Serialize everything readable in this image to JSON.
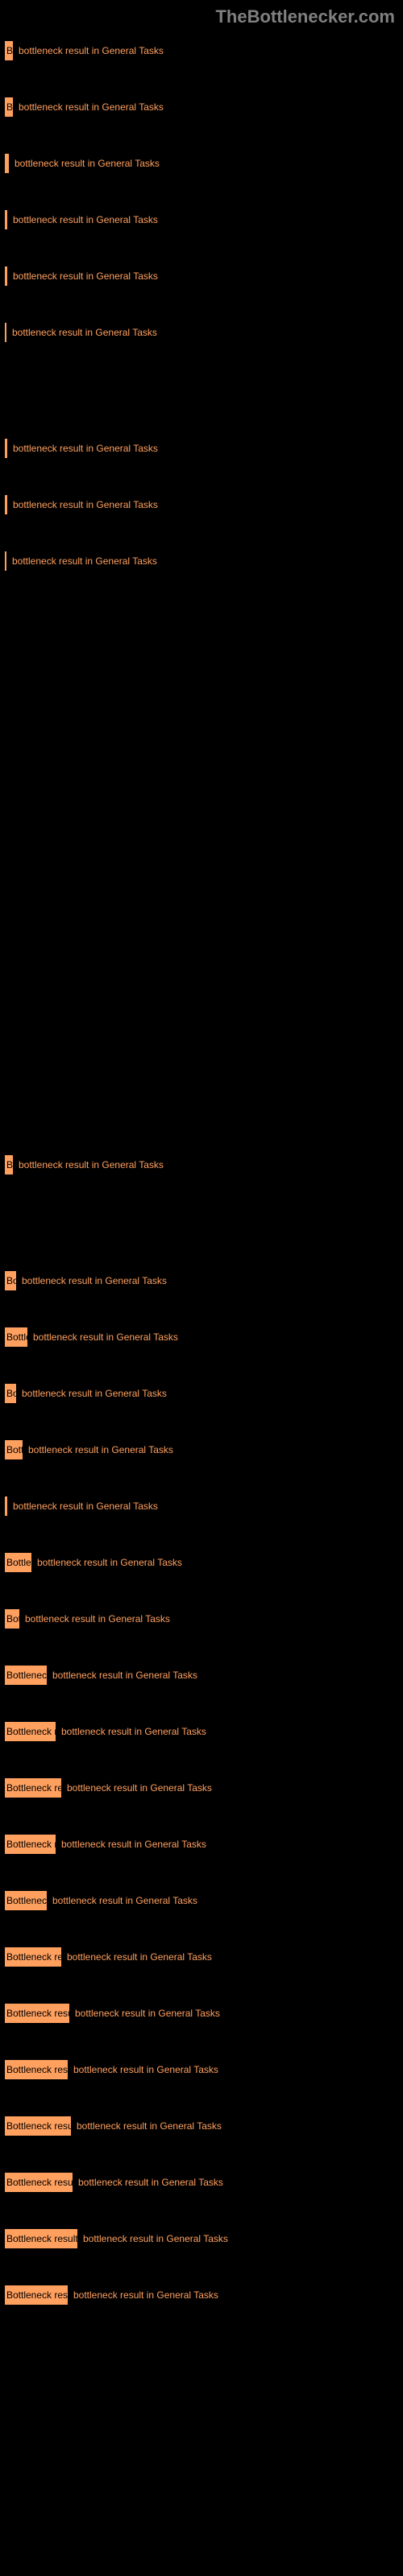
{
  "watermark": "TheBottlenecker.com",
  "chart": {
    "type": "bar",
    "bar_color": "#ffa05f",
    "text_color": "#ffa05f",
    "background_color": "#000000",
    "bars": [
      {
        "width": 12,
        "label": "B",
        "value": "bottleneck result in General Tasks"
      },
      {
        "width": 12,
        "label": "B",
        "value": "bottleneck result in General Tasks"
      },
      {
        "width": 7,
        "label": "",
        "value": "bottleneck result in General Tasks"
      },
      {
        "width": 5,
        "label": "",
        "value": "bottleneck result in General Tasks"
      },
      {
        "width": 5,
        "label": "",
        "value": "bottleneck result in General Tasks"
      },
      {
        "width": 1,
        "label": "",
        "value": "bottleneck result in General Tasks",
        "spacer_after": 74
      },
      {
        "width": 5,
        "label": "",
        "value": "bottleneck result in General Tasks"
      },
      {
        "width": 5,
        "label": "",
        "value": "bottleneck result in General Tasks"
      },
      {
        "width": 1,
        "label": "",
        "value": "bottleneck result in General Tasks",
        "spacer_after": 680
      },
      {
        "width": 12,
        "label": "B",
        "value": "bottleneck result in General Tasks",
        "spacer_after": 74
      },
      {
        "width": 16,
        "label": "Bo",
        "value": "bottleneck result in General Tasks"
      },
      {
        "width": 30,
        "label": "Bottler",
        "value": "bottleneck result in General Tasks"
      },
      {
        "width": 16,
        "label": "Bo",
        "value": "bottleneck result in General Tasks"
      },
      {
        "width": 24,
        "label": "Bottl",
        "value": "bottleneck result in General Tasks"
      },
      {
        "width": 5,
        "label": "",
        "value": "bottleneck result in General Tasks"
      },
      {
        "width": 35,
        "label": "Bottlene",
        "value": "bottleneck result in General Tasks"
      },
      {
        "width": 20,
        "label": "Bot",
        "value": "bottleneck result in General Tasks"
      },
      {
        "width": 54,
        "label": "Bottleneck",
        "value": "bottleneck result in General Tasks"
      },
      {
        "width": 65,
        "label": "Bottleneck re",
        "value": "bottleneck result in General Tasks"
      },
      {
        "width": 72,
        "label": "Bottleneck rese",
        "value": "bottleneck result in General Tasks"
      },
      {
        "width": 65,
        "label": "Bottleneck re",
        "value": "bottleneck result in General Tasks"
      },
      {
        "width": 54,
        "label": "Bottleneck",
        "value": "bottleneck result in General Tasks"
      },
      {
        "width": 72,
        "label": "Bottleneck rese",
        "value": "bottleneck result in General Tasks"
      },
      {
        "width": 82,
        "label": "Bottleneck result",
        "value": "bottleneck result in General Tasks"
      },
      {
        "width": 80,
        "label": "Bottleneck resul",
        "value": "bottleneck result in General Tasks"
      },
      {
        "width": 84,
        "label": "Bottleneck result",
        "value": "bottleneck result in General Tasks"
      },
      {
        "width": 86,
        "label": "Bottleneck result",
        "value": "bottleneck result in General Tasks"
      },
      {
        "width": 92,
        "label": "Bottleneck result ",
        "value": "bottleneck result in General Tasks"
      },
      {
        "width": 80,
        "label": "Bottleneck resul",
        "value": "bottleneck result in General Tasks"
      }
    ]
  }
}
